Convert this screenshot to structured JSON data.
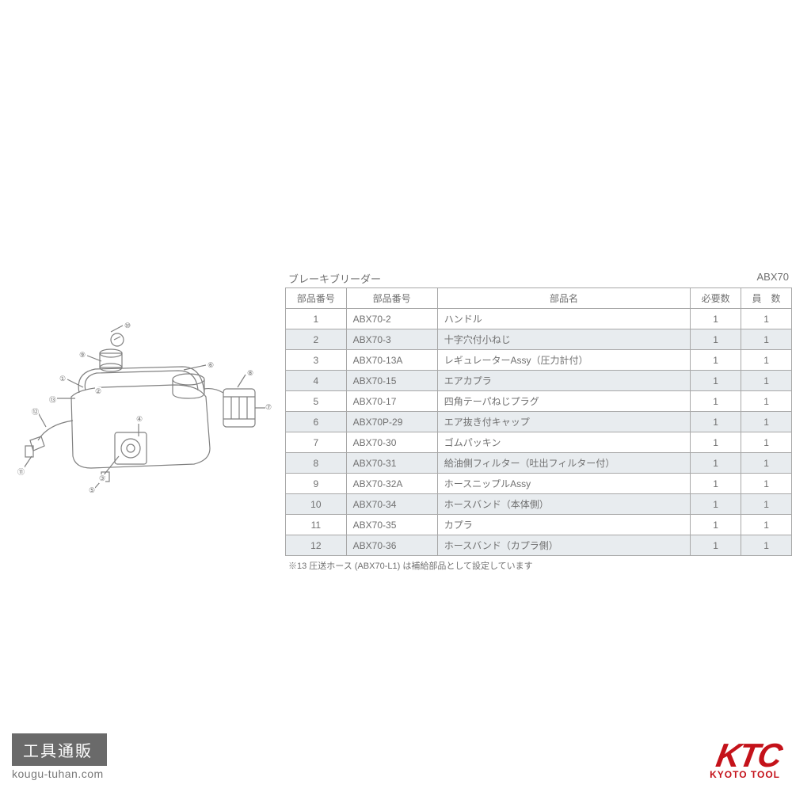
{
  "title": "ブレーキブリーダー",
  "model": "ABX70",
  "columns": [
    "部品番号",
    "部品番号",
    "部品名",
    "必要数",
    "員　数"
  ],
  "col_widths": [
    "12%",
    "18%",
    "50%",
    "10%",
    "10%"
  ],
  "rows": [
    [
      "1",
      "ABX70-2",
      "ハンドル",
      "1",
      "1"
    ],
    [
      "2",
      "ABX70-3",
      "十字穴付小ねじ",
      "1",
      "1"
    ],
    [
      "3",
      "ABX70-13A",
      "レギュレーターAssy（圧力計付）",
      "1",
      "1"
    ],
    [
      "4",
      "ABX70-15",
      "エアカプラ",
      "1",
      "1"
    ],
    [
      "5",
      "ABX70-17",
      "四角テーパねじプラグ",
      "1",
      "1"
    ],
    [
      "6",
      "ABX70P-29",
      "エア抜き付キャップ",
      "1",
      "1"
    ],
    [
      "7",
      "ABX70-30",
      "ゴムパッキン",
      "1",
      "1"
    ],
    [
      "8",
      "ABX70-31",
      "給油側フィルター（吐出フィルター付）",
      "1",
      "1"
    ],
    [
      "9",
      "ABX70-32A",
      "ホースニップルAssy",
      "1",
      "1"
    ],
    [
      "10",
      "ABX70-34",
      "ホースバンド（本体側）",
      "1",
      "1"
    ],
    [
      "11",
      "ABX70-35",
      "カプラ",
      "1",
      "1"
    ],
    [
      "12",
      "ABX70-36",
      "ホースバンド（カプラ側）",
      "1",
      "1"
    ]
  ],
  "footnote": "※13 圧送ホース (ABX70-L1) は補給部品として設定しています",
  "brand_left": {
    "name": "工具通販",
    "url": "kougu-tuhan.com"
  },
  "brand_right": {
    "logo": "KTC",
    "sub": "KYOTO TOOL"
  },
  "diagram": {
    "stroke": "#808080",
    "callouts": [
      "①",
      "②",
      "③",
      "④",
      "⑤",
      "⑥",
      "⑦",
      "⑧",
      "⑨",
      "⑩",
      "⑪",
      "⑫",
      "⑬"
    ]
  },
  "colors": {
    "border": "#a8a8a8",
    "text": "#707070",
    "row_even": "#e8ecef",
    "row_odd": "#ffffff",
    "brand_bg": "#6a6a6a",
    "ktc_red": "#c4121a"
  }
}
